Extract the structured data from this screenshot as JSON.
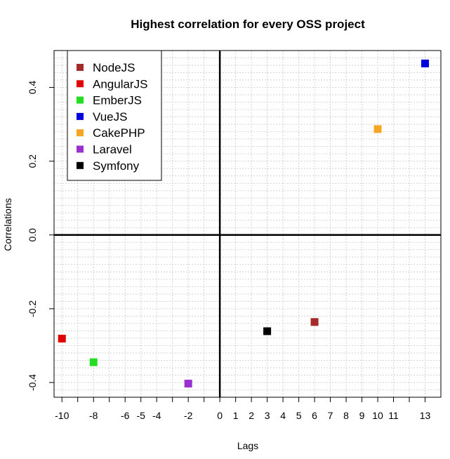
{
  "chart_data": {
    "type": "scatter",
    "title": "Highest correlation for every OSS project",
    "xlabel": "Lags",
    "ylabel": "Correlations",
    "xlim": [
      -10.5,
      14
    ],
    "ylim": [
      -0.44,
      0.5
    ],
    "x_ticks": [
      -10,
      -8,
      -6,
      -5,
      -4,
      -2,
      0,
      1,
      2,
      3,
      4,
      5,
      6,
      7,
      8,
      9,
      10,
      11,
      13
    ],
    "x_tick_labels": [
      "-10",
      "-8",
      "-6",
      "-5",
      "-4",
      "-2",
      "0",
      "1",
      "2",
      "3",
      "4",
      "5",
      "6",
      "7",
      "8",
      "9",
      "10",
      "11",
      "13"
    ],
    "x_unlabeled_ticks": [
      -9,
      -7,
      -3,
      -1,
      12
    ],
    "y_ticks": [
      -0.4,
      -0.2,
      0,
      0.2,
      0.4
    ],
    "y_tick_labels": [
      "-0.4",
      "-0.2",
      "0.0",
      "0.2",
      "0.4"
    ],
    "grid": true,
    "legend_position": "top-left",
    "series": [
      {
        "name": "NodeJS",
        "color": "#a52a2a",
        "x": 6,
        "y": -0.236
      },
      {
        "name": "AngularJS",
        "color": "#e00000",
        "x": -10,
        "y": -0.281
      },
      {
        "name": "EmberJS",
        "color": "#22dd22",
        "x": -8,
        "y": -0.345
      },
      {
        "name": "VueJS",
        "color": "#0000dd",
        "x": 13,
        "y": 0.465
      },
      {
        "name": "CakePHP",
        "color": "#f5a623",
        "x": 10,
        "y": 0.287
      },
      {
        "name": "Laravel",
        "color": "#9b30d0",
        "x": -2,
        "y": -0.403
      },
      {
        "name": "Symfony",
        "color": "#000000",
        "x": 3,
        "y": -0.261
      }
    ]
  }
}
